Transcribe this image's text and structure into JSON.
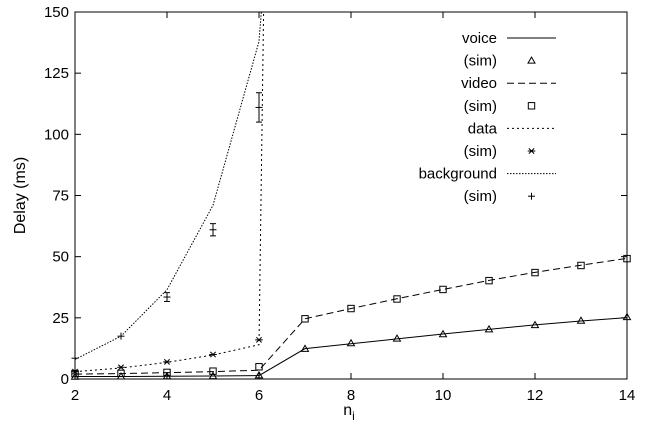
{
  "chart_data": {
    "type": "line",
    "title": "",
    "xlabel": "n",
    "xlabel_subscript": "i",
    "ylabel": "Delay (ms)",
    "xlim": [
      2,
      14
    ],
    "ylim": [
      0,
      150
    ],
    "xticks": [
      2,
      4,
      6,
      8,
      10,
      12,
      14
    ],
    "yticks": [
      0,
      25,
      50,
      75,
      100,
      125,
      150
    ],
    "grid": false,
    "legend_position": "top-right",
    "series": [
      {
        "name": "voice",
        "sim_label": "(sim)",
        "style": "solid",
        "marker": "triangle",
        "x": [
          2,
          3,
          4,
          5,
          6,
          7,
          8,
          9,
          10,
          11,
          12,
          13,
          14
        ],
        "values": [
          1.0,
          1.0,
          1.1,
          1.2,
          1.4,
          12.4,
          14.4,
          16.4,
          18.4,
          20.3,
          22.1,
          23.7,
          25.1
        ],
        "sim_x": [
          2,
          3,
          4,
          5,
          6,
          7,
          8,
          9,
          10,
          11,
          12,
          13,
          14
        ],
        "sim_values": [
          0.9,
          1.0,
          1.1,
          1.2,
          1.5,
          12.3,
          14.6,
          16.5,
          18.3,
          20.3,
          22.0,
          23.8,
          25.3
        ]
      },
      {
        "name": "video",
        "sim_label": "(sim)",
        "style": "dashed",
        "marker": "square",
        "x": [
          2,
          3,
          4,
          5,
          6,
          7,
          8,
          9,
          10,
          11,
          12,
          13,
          14
        ],
        "values": [
          2.0,
          2.2,
          2.6,
          3.0,
          3.6,
          24.6,
          28.8,
          32.8,
          36.6,
          40.3,
          43.6,
          46.5,
          49.3
        ],
        "sim_x": [
          2,
          3,
          4,
          5,
          6,
          7,
          8,
          9,
          10,
          11,
          12,
          13,
          14
        ],
        "sim_values": [
          2.2,
          2.3,
          2.7,
          3.2,
          5.0,
          24.6,
          28.8,
          32.7,
          36.6,
          40.2,
          43.5,
          46.4,
          49.2
        ]
      },
      {
        "name": "data",
        "sim_label": "(sim)",
        "style": "dotted",
        "marker": "asterisk",
        "x": [
          2,
          3,
          4,
          5,
          6,
          6.1
        ],
        "values": [
          3.0,
          4.5,
          6.8,
          9.8,
          14.0,
          150
        ],
        "sim_x": [
          2,
          3,
          4,
          5,
          6
        ],
        "sim_values": [
          3.0,
          4.8,
          7.0,
          10.0,
          16.0
        ]
      },
      {
        "name": "background",
        "sim_label": "(sim)",
        "style": "densedot",
        "marker": "plus",
        "x": [
          2,
          3,
          4,
          5,
          6,
          6.05
        ],
        "values": [
          8.0,
          17.5,
          36.5,
          71.0,
          138.0,
          150
        ],
        "sim_x": [
          2,
          3,
          4,
          5,
          6
        ],
        "sim_values": [
          8.5,
          17.5,
          33.5,
          61.0,
          111.0
        ],
        "sim_errors": [
          0.0,
          0.0,
          1.8,
          2.5,
          6.0
        ]
      }
    ]
  }
}
